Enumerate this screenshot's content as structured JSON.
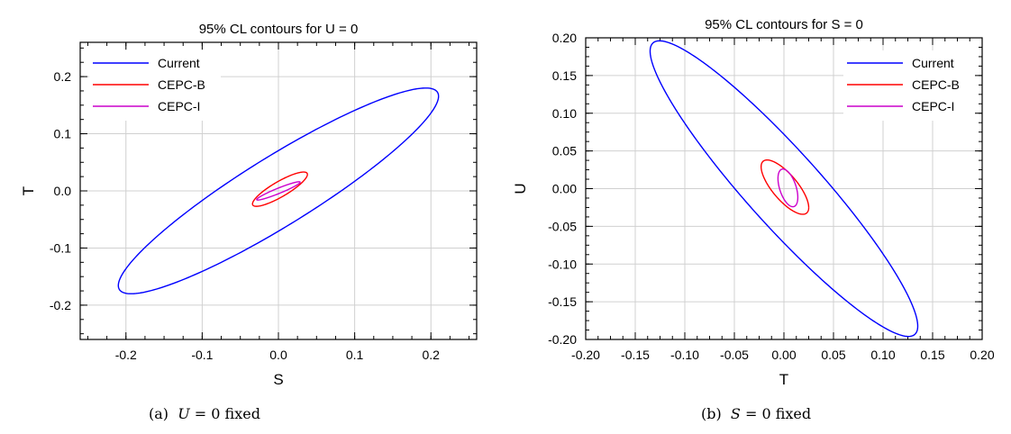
{
  "chart_data": [
    {
      "type": "line",
      "title": "95% CL contours for U = 0",
      "xlabel": "S",
      "ylabel": "T",
      "xlim": [
        -0.26,
        0.26
      ],
      "ylim": [
        -0.26,
        0.26
      ],
      "xticks": [
        -0.2,
        -0.1,
        0.0,
        0.1,
        0.2
      ],
      "xtick_labels": [
        "-0.2",
        "-0.1",
        "0.0",
        "0.1",
        "0.2"
      ],
      "yticks": [
        -0.2,
        -0.1,
        0.0,
        0.1,
        0.2
      ],
      "ytick_labels": [
        "-0.2",
        "-0.1",
        "0.0",
        "0.1",
        "0.2"
      ],
      "grid": true,
      "legend_position": "top-left",
      "series": [
        {
          "name": "Current",
          "color": "#0000ff",
          "shape": "ellipse",
          "center": [
            0.0,
            0.0
          ],
          "x_extent": [
            -0.21,
            0.21
          ],
          "y_extent": [
            -0.18,
            0.18
          ],
          "correlation": 0.92
        },
        {
          "name": "CEPC-B",
          "color": "#ff0000",
          "shape": "ellipse",
          "center": [
            0.002,
            0.003
          ],
          "x_extent": [
            -0.034,
            0.038
          ],
          "y_extent": [
            -0.027,
            0.033
          ],
          "correlation": 0.86
        },
        {
          "name": "CEPC-I",
          "color": "#cc00cc",
          "shape": "ellipse",
          "center": [
            0.0,
            0.0
          ],
          "x_extent": [
            -0.028,
            0.029
          ],
          "y_extent": [
            -0.015,
            0.017
          ],
          "correlation": 0.95
        }
      ],
      "caption_prefix": "(a)",
      "caption_math": "U",
      "caption_rest": " = 0 fixed"
    },
    {
      "type": "line",
      "title": "95% CL contours for S = 0",
      "xlabel": "T",
      "ylabel": "U",
      "xlim": [
        -0.2,
        0.2
      ],
      "ylim": [
        -0.2,
        0.2
      ],
      "xticks": [
        -0.2,
        -0.15,
        -0.1,
        -0.05,
        0.0,
        0.05,
        0.1,
        0.15,
        0.2
      ],
      "xtick_labels": [
        "-0.20",
        "-0.15",
        "-0.10",
        "-0.05",
        "0.00",
        "0.05",
        "0.10",
        "0.15",
        "0.20"
      ],
      "yticks": [
        -0.2,
        -0.15,
        -0.1,
        -0.05,
        0.0,
        0.05,
        0.1,
        0.15,
        0.2
      ],
      "ytick_labels": [
        "-0.20",
        "-0.15",
        "-0.10",
        "-0.05",
        "0.00",
        "0.05",
        "0.10",
        "0.15",
        "0.20"
      ],
      "grid": true,
      "legend_position": "top-right",
      "series": [
        {
          "name": "Current",
          "color": "#0000ff",
          "shape": "ellipse",
          "center": [
            0.0,
            0.0
          ],
          "x_extent": [
            -0.135,
            0.135
          ],
          "y_extent": [
            -0.196,
            0.196
          ],
          "correlation": -0.93
        },
        {
          "name": "CEPC-B",
          "color": "#ff0000",
          "shape": "ellipse",
          "center": [
            0.001,
            0.002
          ],
          "x_extent": [
            -0.023,
            0.025
          ],
          "y_extent": [
            -0.034,
            0.038
          ],
          "correlation": -0.75
        },
        {
          "name": "CEPC-I",
          "color": "#cc00cc",
          "shape": "ellipse",
          "center": [
            0.004,
            0.001
          ],
          "x_extent": [
            -0.006,
            0.014
          ],
          "y_extent": [
            -0.025,
            0.025
          ],
          "correlation": -0.5
        }
      ],
      "caption_prefix": "(b)",
      "caption_math": "S",
      "caption_rest": " = 0 fixed"
    }
  ]
}
